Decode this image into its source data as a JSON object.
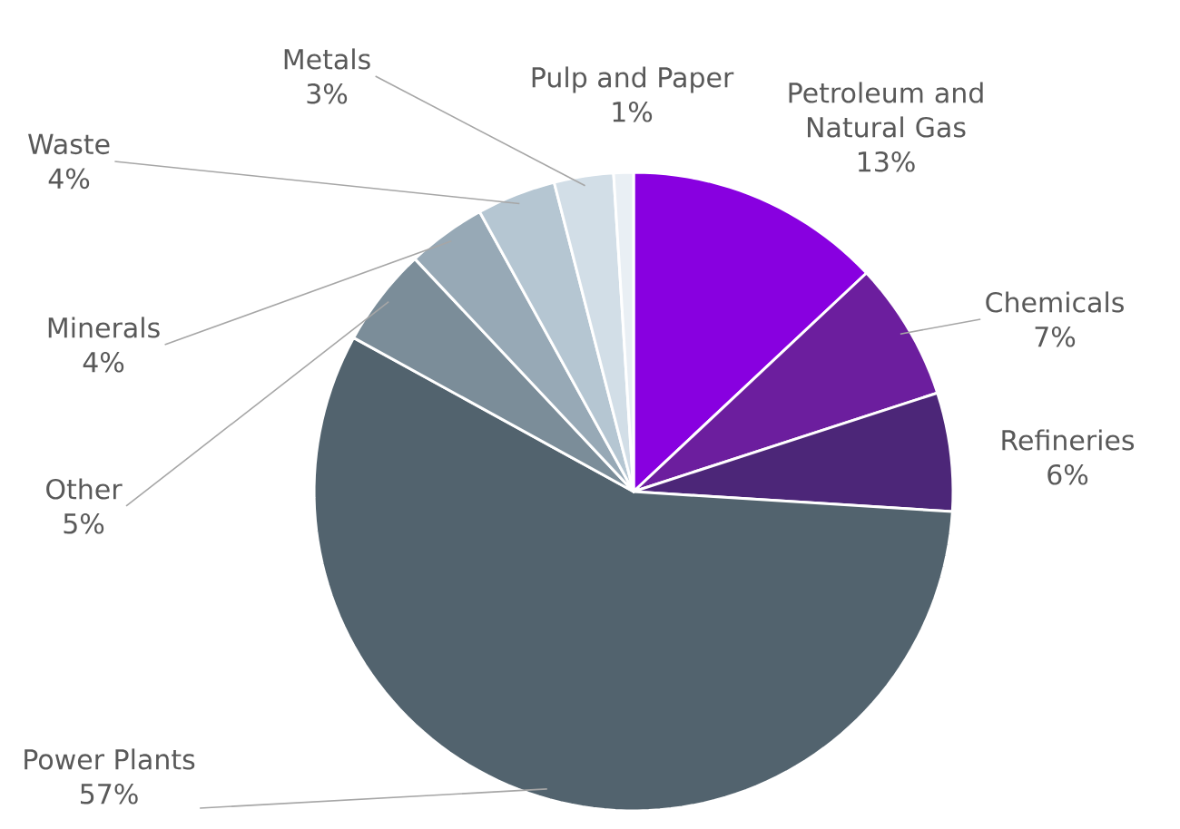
{
  "chart_data": {
    "type": "pie",
    "categories": [
      "Petroleum and Natural Gas",
      "Chemicals",
      "Refineries",
      "Power Plants",
      "Other",
      "Minerals",
      "Waste",
      "Metals",
      "Pulp and Paper"
    ],
    "values": [
      13,
      7,
      6,
      57,
      5,
      4,
      4,
      3,
      1
    ],
    "value_labels": [
      "13%",
      "7%",
      "6%",
      "57%",
      "5%",
      "4%",
      "4%",
      "3%",
      "1%"
    ],
    "colors": [
      "#8800e0",
      "#6c1e9e",
      "#4c2678",
      "#52636e",
      "#7b8d99",
      "#97a9b6",
      "#b5c6d2",
      "#d2dee7",
      "#e9eff4"
    ]
  }
}
